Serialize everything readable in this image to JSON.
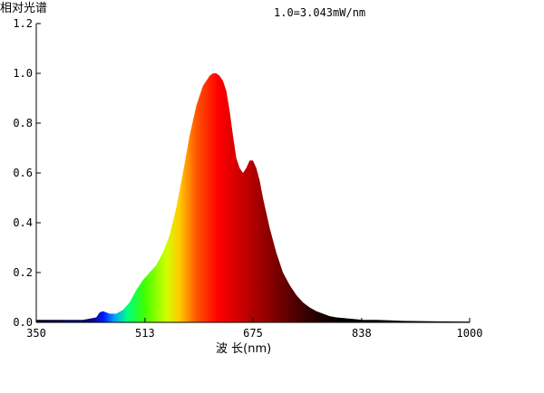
{
  "chart_data": {
    "type": "area",
    "title": "相对光谱",
    "annotation": "1.0=3.043mW/nm",
    "xlabel": "波 长(nm)",
    "ylabel": "",
    "xlim": [
      350,
      1000
    ],
    "ylim": [
      0,
      1.2
    ],
    "x_ticks": [
      "350",
      "513",
      "675",
      "838",
      "1000"
    ],
    "y_ticks": [
      "0.0",
      "0.2",
      "0.4",
      "0.6",
      "0.8",
      "1.0",
      "1.2"
    ],
    "grid": false,
    "series": [
      {
        "x": [
          350,
          380,
          420,
          440,
          445,
          450,
          455,
          460,
          470,
          480,
          490,
          500,
          510,
          520,
          530,
          540,
          550,
          560,
          570,
          580,
          590,
          600,
          610,
          615,
          620,
          625,
          630,
          635,
          640,
          645,
          650,
          655,
          660,
          665,
          670,
          675,
          680,
          685,
          690,
          700,
          710,
          720,
          730,
          740,
          750,
          760,
          770,
          780,
          790,
          800,
          820,
          840,
          860,
          880,
          900,
          950,
          1000
        ],
        "y": [
          0.01,
          0.01,
          0.01,
          0.02,
          0.04,
          0.045,
          0.04,
          0.035,
          0.035,
          0.05,
          0.08,
          0.13,
          0.17,
          0.2,
          0.23,
          0.28,
          0.35,
          0.46,
          0.6,
          0.75,
          0.87,
          0.95,
          0.99,
          1.0,
          1.0,
          0.99,
          0.97,
          0.93,
          0.85,
          0.75,
          0.66,
          0.62,
          0.6,
          0.62,
          0.65,
          0.65,
          0.62,
          0.57,
          0.5,
          0.38,
          0.28,
          0.2,
          0.15,
          0.11,
          0.08,
          0.06,
          0.045,
          0.035,
          0.025,
          0.02,
          0.015,
          0.01,
          0.01,
          0.008,
          0.006,
          0.004,
          0.003
        ]
      }
    ]
  }
}
